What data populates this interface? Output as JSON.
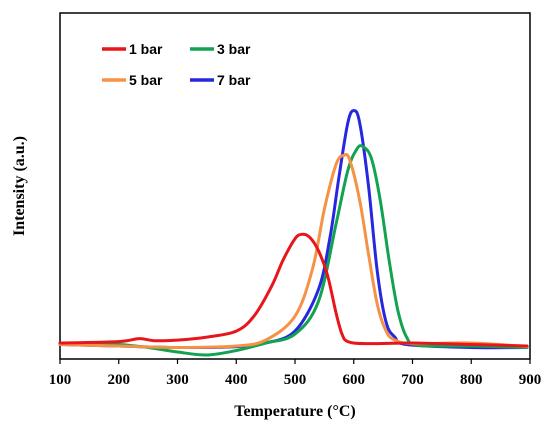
{
  "chart_data": {
    "type": "line",
    "title": "",
    "xlabel": "Temperature  (°C)",
    "ylabel": "Intensity (a.u.)",
    "xlim": [
      100,
      900
    ],
    "ylim": [
      0,
      1
    ],
    "x_ticks": [
      "100",
      "200",
      "300",
      "400",
      "500",
      "600",
      "700",
      "800",
      "900"
    ],
    "y_ticks_shown": false,
    "grid": false,
    "legend_position": "top-left, 2 columns",
    "series": [
      {
        "name": "1 bar",
        "color": "#e8151b",
        "points": [
          [
            100,
            0.02
          ],
          [
            200,
            0.025
          ],
          [
            235,
            0.035
          ],
          [
            260,
            0.028
          ],
          [
            300,
            0.03
          ],
          [
            350,
            0.04
          ],
          [
            400,
            0.06
          ],
          [
            430,
            0.11
          ],
          [
            460,
            0.21
          ],
          [
            480,
            0.3
          ],
          [
            500,
            0.37
          ],
          [
            512,
            0.385
          ],
          [
            525,
            0.375
          ],
          [
            540,
            0.33
          ],
          [
            555,
            0.25
          ],
          [
            570,
            0.12
          ],
          [
            580,
            0.05
          ],
          [
            590,
            0.025
          ],
          [
            620,
            0.018
          ],
          [
            700,
            0.02
          ],
          [
            800,
            0.015
          ],
          [
            895,
            0.01
          ]
        ]
      },
      {
        "name": "3 bar",
        "color": "#12a351",
        "points": [
          [
            100,
            0.02
          ],
          [
            200,
            0.015
          ],
          [
            250,
            0.005
          ],
          [
            300,
            -0.01
          ],
          [
            350,
            -0.02
          ],
          [
            400,
            -0.005
          ],
          [
            450,
            0.02
          ],
          [
            500,
            0.05
          ],
          [
            540,
            0.16
          ],
          [
            570,
            0.42
          ],
          [
            590,
            0.6
          ],
          [
            605,
            0.67
          ],
          [
            615,
            0.68
          ],
          [
            630,
            0.64
          ],
          [
            645,
            0.5
          ],
          [
            660,
            0.3
          ],
          [
            675,
            0.13
          ],
          [
            690,
            0.04
          ],
          [
            710,
            0.012
          ],
          [
            800,
            0.01
          ],
          [
            895,
            0.005
          ]
        ]
      },
      {
        "name": "5 bar",
        "color": "#f59245",
        "points": [
          [
            100,
            0.015
          ],
          [
            200,
            0.01
          ],
          [
            300,
            0.005
          ],
          [
            400,
            0.01
          ],
          [
            450,
            0.03
          ],
          [
            500,
            0.11
          ],
          [
            530,
            0.27
          ],
          [
            550,
            0.47
          ],
          [
            570,
            0.62
          ],
          [
            583,
            0.65
          ],
          [
            593,
            0.635
          ],
          [
            610,
            0.5
          ],
          [
            625,
            0.32
          ],
          [
            640,
            0.15
          ],
          [
            655,
            0.06
          ],
          [
            670,
            0.03
          ],
          [
            700,
            0.018
          ],
          [
            800,
            0.02
          ],
          [
            895,
            0.008
          ]
        ]
      },
      {
        "name": "7 bar",
        "color": "#2727e0",
        "points": [
          [
            100,
            0.015
          ],
          [
            200,
            0.01
          ],
          [
            300,
            0.005
          ],
          [
            400,
            0.008
          ],
          [
            450,
            0.02
          ],
          [
            500,
            0.06
          ],
          [
            540,
            0.2
          ],
          [
            560,
            0.38
          ],
          [
            575,
            0.58
          ],
          [
            590,
            0.76
          ],
          [
            600,
            0.8
          ],
          [
            610,
            0.76
          ],
          [
            625,
            0.55
          ],
          [
            640,
            0.26
          ],
          [
            655,
            0.09
          ],
          [
            670,
            0.04
          ],
          [
            690,
            0.015
          ],
          [
            800,
            0.005
          ],
          [
            895,
            0.005
          ]
        ]
      }
    ]
  }
}
